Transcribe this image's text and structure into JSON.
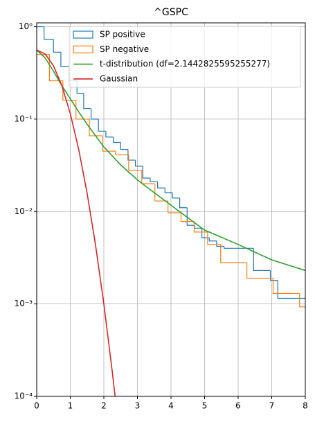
{
  "chart_data": {
    "type": "step-hist-line",
    "title": "^GSPC",
    "xlim": [
      0,
      8
    ],
    "xticks": [
      0,
      1,
      2,
      3,
      4,
      5,
      6,
      7,
      8
    ],
    "ylim": [
      0.0001,
      1.1
    ],
    "log_y": true,
    "yticks": [
      {
        "value": 0.0001,
        "label": "10⁻⁴"
      },
      {
        "value": 0.001,
        "label": "10⁻³"
      },
      {
        "value": 0.01,
        "label": "10⁻²"
      },
      {
        "value": 0.1,
        "label": "10⁻¹"
      },
      {
        "value": 1,
        "label": "10⁰"
      }
    ],
    "grid": true,
    "legend": "upper right",
    "series": [
      {
        "name": "SP positive",
        "type": "step",
        "color": "#1f77b4",
        "bins": [
          0,
          0.22,
          0.5,
          0.72,
          0.97,
          1.2,
          1.4,
          1.62,
          1.84,
          2.06,
          2.28,
          2.5,
          2.72,
          2.94,
          3.16,
          3.38,
          3.6,
          3.82,
          4.04,
          4.26,
          4.48,
          4.7,
          4.92,
          5.14,
          5.36,
          5.58,
          6.46,
          6.96,
          7.18,
          8
        ],
        "values": [
          1.0,
          0.73,
          0.53,
          0.37,
          0.26,
          0.19,
          0.13,
          0.1,
          0.074,
          0.064,
          0.056,
          0.047,
          0.036,
          0.031,
          0.023,
          0.021,
          0.018,
          0.016,
          0.014,
          0.011,
          0.0071,
          0.0066,
          0.0052,
          0.0048,
          0.0042,
          0.004,
          0.0023,
          0.0018,
          0.00115
        ]
      },
      {
        "name": "SP negative",
        "type": "step",
        "color": "#ff7f0e",
        "bins": [
          0,
          0.38,
          0.78,
          1.17,
          1.57,
          1.96,
          2.35,
          2.74,
          3.13,
          3.52,
          3.91,
          4.3,
          4.69,
          5.09,
          5.48,
          6.26,
          7.04,
          7.83,
          8
        ],
        "values": [
          0.5,
          0.26,
          0.16,
          0.1,
          0.066,
          0.045,
          0.041,
          0.028,
          0.02,
          0.013,
          0.0097,
          0.0078,
          0.006,
          0.0044,
          0.0028,
          0.0019,
          0.0013,
          0.00093
        ]
      },
      {
        "name": "t-distribution (df=2.1442825595255277)",
        "type": "line",
        "color": "#2ca02c",
        "x": [
          0,
          0.25,
          0.5,
          0.75,
          1,
          1.25,
          1.5,
          2,
          2.5,
          3,
          3.5,
          4,
          5,
          6,
          7,
          8
        ],
        "values": [
          0.56,
          0.46,
          0.33,
          0.23,
          0.166,
          0.12,
          0.088,
          0.05,
          0.032,
          0.022,
          0.016,
          0.0117,
          0.0063,
          0.0044,
          0.003,
          0.0023
        ]
      },
      {
        "name": "Gaussian",
        "type": "line",
        "color": "#d62728",
        "x": [
          0,
          0.25,
          0.5,
          0.75,
          1,
          1.25,
          1.5,
          1.75,
          2,
          2.25,
          2.35
        ],
        "values": [
          0.56,
          0.507,
          0.377,
          0.23,
          0.115,
          0.0473,
          0.0159,
          0.0044,
          0.001,
          0.000186,
          8.98e-05
        ]
      }
    ]
  }
}
